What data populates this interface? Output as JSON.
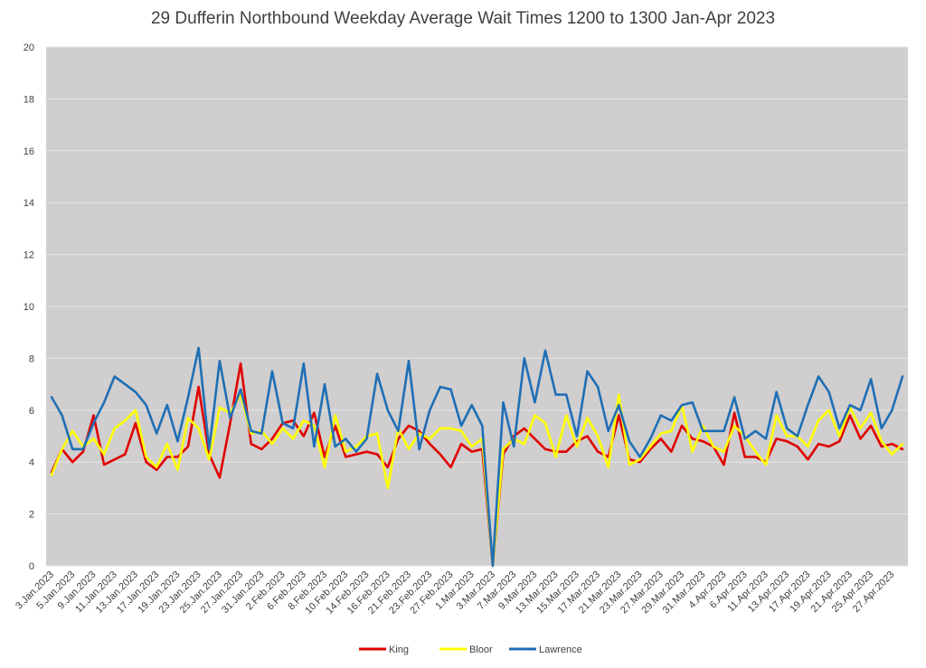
{
  "chart_data": {
    "type": "line",
    "title": "29 Dufferin Northbound Weekday Average Wait Times 1200 to 1300 Jan-Apr 2023",
    "xlabel": "",
    "ylabel": "",
    "ylim": [
      0,
      20
    ],
    "yticks": [
      0,
      2,
      4,
      6,
      8,
      10,
      12,
      14,
      16,
      18,
      20
    ],
    "grid": true,
    "legend_position": "bottom",
    "plot_background": "#d0cece",
    "x": [
      "3.Jan.2023",
      "4.Jan.2023",
      "5.Jan.2023",
      "6.Jan.2023",
      "9.Jan.2023",
      "10.Jan.2023",
      "11.Jan.2023",
      "12.Jan.2023",
      "13.Jan.2023",
      "16.Jan.2023",
      "17.Jan.2023",
      "18.Jan.2023",
      "19.Jan.2023",
      "20.Jan.2023",
      "23.Jan.2023",
      "24.Jan.2023",
      "25.Jan.2023",
      "26.Jan.2023",
      "27.Jan.2023",
      "30.Jan.2023",
      "31.Jan.2023",
      "1.Feb.2023",
      "2.Feb.2023",
      "3.Feb.2023",
      "6.Feb.2023",
      "7.Feb.2023",
      "8.Feb.2023",
      "9.Feb.2023",
      "10.Feb.2023",
      "13.Feb.2023",
      "14.Feb.2023",
      "15.Feb.2023",
      "16.Feb.2023",
      "17.Feb.2023",
      "21.Feb.2023",
      "22.Feb.2023",
      "23.Feb.2023",
      "24.Feb.2023",
      "27.Feb.2023",
      "28.Feb.2023",
      "1.Mar.2023",
      "2.Mar.2023",
      "3.Mar.2023",
      "6.Mar.2023",
      "7.Mar.2023",
      "8.Mar.2023",
      "9.Mar.2023",
      "10.Mar.2023",
      "13.Mar.2023",
      "14.Mar.2023",
      "15.Mar.2023",
      "16.Mar.2023",
      "17.Mar.2023",
      "20.Mar.2023",
      "21.Mar.2023",
      "22.Mar.2023",
      "23.Mar.2023",
      "24.Mar.2023",
      "27.Mar.2023",
      "28.Mar.2023",
      "29.Mar.2023",
      "30.Mar.2023",
      "31.Mar.2023",
      "3.Apr.2023",
      "4.Apr.2023",
      "5.Apr.2023",
      "6.Apr.2023",
      "10.Apr.2023",
      "11.Apr.2023",
      "12.Apr.2023",
      "13.Apr.2023",
      "14.Apr.2023",
      "17.Apr.2023",
      "18.Apr.2023",
      "19.Apr.2023",
      "20.Apr.2023",
      "21.Apr.2023",
      "24.Apr.2023",
      "25.Apr.2023",
      "26.Apr.2023",
      "27.Apr.2023",
      "28.Apr.2023"
    ],
    "xtick_labels": [
      "3.Jan.2023",
      "5.Jan.2023",
      "9.Jan.2023",
      "11.Jan.2023",
      "13.Jan.2023",
      "17.Jan.2023",
      "19.Jan.2023",
      "23.Jan.2023",
      "25.Jan.2023",
      "27.Jan.2023",
      "31.Jan.2023",
      "2.Feb.2023",
      "6.Feb.2023",
      "8.Feb.2023",
      "10.Feb.2023",
      "14.Feb.2023",
      "16.Feb.2023",
      "21.Feb.2023",
      "23.Feb.2023",
      "27.Feb.2023",
      "1.Mar.2023",
      "3.Mar.2023",
      "7.Mar.2023",
      "9.Mar.2023",
      "13.Mar.2023",
      "15.Mar.2023",
      "17.Mar.2023",
      "21.Mar.2023",
      "23.Mar.2023",
      "27.Mar.2023",
      "29.Mar.2023",
      "31.Mar.2023",
      "4.Apr.2023",
      "6.Apr.2023",
      "11.Apr.2023",
      "13.Apr.2023",
      "17.Apr.2023",
      "19.Apr.2023",
      "21.Apr.2023",
      "25.Apr.2023",
      "27.Apr.2023"
    ],
    "series": [
      {
        "name": "King",
        "color": "#e00000",
        "values": [
          3.6,
          4.5,
          4.0,
          4.4,
          5.8,
          3.9,
          4.1,
          4.3,
          5.5,
          4.0,
          3.7,
          4.2,
          4.2,
          4.6,
          6.9,
          4.3,
          3.4,
          5.5,
          7.8,
          4.7,
          4.5,
          4.9,
          5.5,
          5.6,
          5.0,
          5.9,
          4.2,
          5.4,
          4.2,
          4.3,
          4.4,
          4.3,
          3.8,
          4.9,
          5.4,
          5.2,
          4.7,
          4.3,
          3.8,
          4.7,
          4.4,
          4.5,
          0.0,
          4.3,
          5.0,
          5.3,
          4.9,
          4.5,
          4.4,
          4.4,
          4.8,
          5.0,
          4.4,
          4.2,
          5.8,
          4.1,
          4.0,
          4.5,
          4.9,
          4.4,
          5.4,
          4.9,
          4.8,
          4.6,
          3.9,
          5.9,
          4.2,
          4.2,
          4.0,
          4.9,
          4.8,
          4.6,
          4.1,
          4.7,
          4.6,
          4.8,
          5.8,
          4.9,
          5.4,
          4.6,
          4.7,
          4.5
        ]
      },
      {
        "name": "Bloor",
        "color": "#ffff00",
        "values": [
          3.5,
          4.5,
          5.2,
          4.6,
          4.9,
          4.3,
          5.3,
          5.6,
          6.0,
          4.2,
          3.8,
          4.7,
          3.7,
          5.7,
          5.3,
          4.1,
          6.1,
          5.9,
          6.6,
          5.1,
          5.2,
          4.7,
          5.3,
          4.9,
          5.6,
          5.4,
          3.8,
          5.8,
          4.4,
          4.6,
          5.0,
          5.1,
          3.0,
          5.3,
          4.5,
          5.1,
          4.9,
          5.3,
          5.3,
          5.2,
          4.6,
          4.9,
          0.0,
          4.5,
          4.9,
          4.7,
          5.8,
          5.5,
          4.2,
          5.8,
          4.6,
          5.7,
          5.0,
          3.8,
          6.6,
          3.9,
          4.1,
          4.6,
          5.1,
          5.2,
          6.2,
          4.4,
          5.4,
          4.6,
          4.4,
          5.4,
          5.0,
          4.4,
          3.9,
          5.8,
          5.0,
          5.0,
          4.6,
          5.6,
          6.0,
          5.0,
          6.1,
          5.3,
          5.9,
          4.8,
          4.3,
          4.7
        ]
      },
      {
        "name": "Lawrence",
        "color": "#1f6fb5",
        "values": [
          6.5,
          5.8,
          4.5,
          4.5,
          5.5,
          6.3,
          7.3,
          7.0,
          6.7,
          6.2,
          5.1,
          6.2,
          4.8,
          6.5,
          8.4,
          4.5,
          7.9,
          5.7,
          6.8,
          5.2,
          5.1,
          7.5,
          5.5,
          5.3,
          7.8,
          4.6,
          7.0,
          4.6,
          4.9,
          4.4,
          4.9,
          7.4,
          6.0,
          5.2,
          7.9,
          4.5,
          6.0,
          6.9,
          6.8,
          5.4,
          6.2,
          5.4,
          0.0,
          6.3,
          4.6,
          8.0,
          6.3,
          8.3,
          6.6,
          6.6,
          5.0,
          7.5,
          6.9,
          5.2,
          6.2,
          4.8,
          4.2,
          4.9,
          5.8,
          5.6,
          6.2,
          6.3,
          5.2,
          5.2,
          5.2,
          6.5,
          4.9,
          5.2,
          4.9,
          6.7,
          5.3,
          5.0,
          6.2,
          7.3,
          6.7,
          5.3,
          6.2,
          6.0,
          7.2,
          5.3,
          6.0,
          7.3
        ]
      }
    ]
  }
}
